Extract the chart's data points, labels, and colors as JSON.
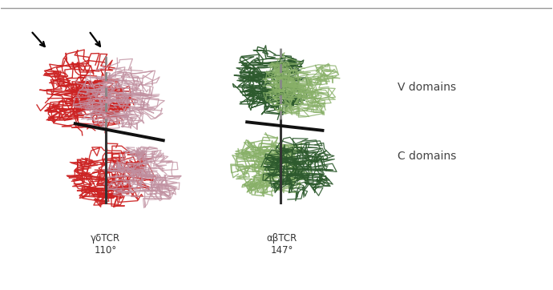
{
  "bg_color": "#ffffff",
  "top_line_color": "#999999",
  "label_left": "γδTCR\n110°",
  "label_right": "αβTCR\n147°",
  "v_domains_label": "V domains",
  "c_domains_label": "C domains",
  "left_color_dark": "#cc2222",
  "left_color_light": "#c090a0",
  "right_color_dark": "#2d5a2d",
  "right_color_light": "#88b068",
  "figsize": [
    6.9,
    3.62
  ],
  "dpi": 100
}
